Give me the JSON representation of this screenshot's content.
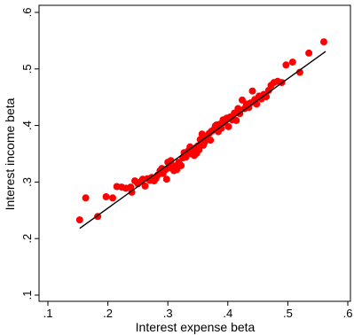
{
  "chart_data": {
    "type": "scatter",
    "xlabel": "Interest expense beta",
    "ylabel": "Interest income beta",
    "xlim": [
      0.1,
      0.6
    ],
    "ylim": [
      0.1,
      0.6
    ],
    "x_ticks": [
      0.1,
      0.2,
      0.3,
      0.4,
      0.5,
      0.6
    ],
    "x_tick_labels": [
      ".1",
      ".2",
      ".3",
      ".4",
      ".5",
      ".6"
    ],
    "y_ticks": [
      0.1,
      0.2,
      0.3,
      0.4,
      0.5,
      0.6
    ],
    "y_tick_labels": [
      ".1",
      ".2",
      ".3",
      ".4",
      ".5",
      ".6"
    ],
    "grid": false,
    "point_color": "#ff0000",
    "line_color": "#000000",
    "fit_line": {
      "x": [
        0.153,
        0.563
      ],
      "y": [
        0.218,
        0.531
      ]
    },
    "points": [
      [
        0.153,
        0.233
      ],
      [
        0.163,
        0.272
      ],
      [
        0.183,
        0.239
      ],
      [
        0.197,
        0.274
      ],
      [
        0.208,
        0.272
      ],
      [
        0.215,
        0.292
      ],
      [
        0.223,
        0.291
      ],
      [
        0.23,
        0.289
      ],
      [
        0.238,
        0.291
      ],
      [
        0.24,
        0.282
      ],
      [
        0.245,
        0.302
      ],
      [
        0.25,
        0.297
      ],
      [
        0.255,
        0.301
      ],
      [
        0.258,
        0.305
      ],
      [
        0.262,
        0.293
      ],
      [
        0.266,
        0.306
      ],
      [
        0.27,
        0.303
      ],
      [
        0.273,
        0.308
      ],
      [
        0.277,
        0.302
      ],
      [
        0.28,
        0.306
      ],
      [
        0.283,
        0.312
      ],
      [
        0.287,
        0.32
      ],
      [
        0.29,
        0.324
      ],
      [
        0.292,
        0.315
      ],
      [
        0.296,
        0.322
      ],
      [
        0.298,
        0.305
      ],
      [
        0.3,
        0.335
      ],
      [
        0.302,
        0.325
      ],
      [
        0.305,
        0.338
      ],
      [
        0.307,
        0.33
      ],
      [
        0.31,
        0.32
      ],
      [
        0.312,
        0.328
      ],
      [
        0.315,
        0.322
      ],
      [
        0.318,
        0.335
      ],
      [
        0.32,
        0.331
      ],
      [
        0.322,
        0.329
      ],
      [
        0.325,
        0.343
      ],
      [
        0.327,
        0.352
      ],
      [
        0.33,
        0.344
      ],
      [
        0.332,
        0.35
      ],
      [
        0.334,
        0.355
      ],
      [
        0.337,
        0.362
      ],
      [
        0.339,
        0.35
      ],
      [
        0.341,
        0.358
      ],
      [
        0.344,
        0.347
      ],
      [
        0.346,
        0.36
      ],
      [
        0.348,
        0.351
      ],
      [
        0.35,
        0.364
      ],
      [
        0.352,
        0.357
      ],
      [
        0.354,
        0.375
      ],
      [
        0.357,
        0.385
      ],
      [
        0.359,
        0.365
      ],
      [
        0.361,
        0.37
      ],
      [
        0.363,
        0.378
      ],
      [
        0.366,
        0.382
      ],
      [
        0.369,
        0.386
      ],
      [
        0.371,
        0.374
      ],
      [
        0.373,
        0.39
      ],
      [
        0.376,
        0.392
      ],
      [
        0.379,
        0.399
      ],
      [
        0.381,
        0.401
      ],
      [
        0.384,
        0.389
      ],
      [
        0.386,
        0.402
      ],
      [
        0.389,
        0.395
      ],
      [
        0.392,
        0.41
      ],
      [
        0.395,
        0.405
      ],
      [
        0.398,
        0.413
      ],
      [
        0.401,
        0.398
      ],
      [
        0.404,
        0.415
      ],
      [
        0.407,
        0.41
      ],
      [
        0.411,
        0.422
      ],
      [
        0.414,
        0.409
      ],
      [
        0.417,
        0.43
      ],
      [
        0.42,
        0.421
      ],
      [
        0.424,
        0.445
      ],
      [
        0.428,
        0.43
      ],
      [
        0.431,
        0.438
      ],
      [
        0.435,
        0.432
      ],
      [
        0.438,
        0.44
      ],
      [
        0.441,
        0.461
      ],
      [
        0.445,
        0.446
      ],
      [
        0.448,
        0.438
      ],
      [
        0.452,
        0.452
      ],
      [
        0.456,
        0.447
      ],
      [
        0.46,
        0.455
      ],
      [
        0.464,
        0.451
      ],
      [
        0.468,
        0.462
      ],
      [
        0.472,
        0.471
      ],
      [
        0.477,
        0.476
      ],
      [
        0.483,
        0.478
      ],
      [
        0.49,
        0.476
      ],
      [
        0.497,
        0.507
      ],
      [
        0.508,
        0.512
      ],
      [
        0.52,
        0.494
      ],
      [
        0.535,
        0.528
      ],
      [
        0.56,
        0.548
      ]
    ]
  }
}
